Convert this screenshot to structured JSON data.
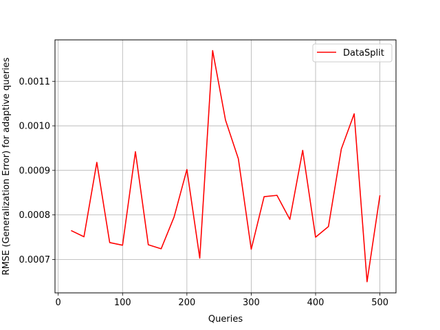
{
  "chart_data": {
    "type": "line",
    "xlabel": "Queries",
    "ylabel": "RMSE (Generalization Error) for adaptive queries",
    "xlim": [
      -5,
      525
    ],
    "ylim": [
      0.000625,
      0.001193
    ],
    "xticks": [
      0,
      100,
      200,
      300,
      400,
      500
    ],
    "xtick_labels": [
      "0",
      "100",
      "200",
      "300",
      "400",
      "500"
    ],
    "yticks": [
      0.0007,
      0.0008,
      0.0009,
      0.001,
      0.0011
    ],
    "ytick_labels": [
      "0.0007",
      "0.0008",
      "0.0009",
      "0.0010",
      "0.0011"
    ],
    "grid": true,
    "legend_position": "top-right",
    "series": [
      {
        "name": "DataSplit",
        "color": "#ff0000",
        "x": [
          20,
          40,
          60,
          80,
          100,
          120,
          140,
          160,
          180,
          200,
          220,
          240,
          260,
          280,
          300,
          320,
          340,
          360,
          380,
          400,
          420,
          440,
          460,
          480,
          500
        ],
        "y": [
          0.000765,
          0.000751,
          0.000918,
          0.000738,
          0.000732,
          0.000942,
          0.000733,
          0.000724,
          0.000795,
          0.000902,
          0.000703,
          0.001169,
          0.001013,
          0.000926,
          0.000723,
          0.000841,
          0.000844,
          0.00079,
          0.000945,
          0.00075,
          0.000774,
          0.000948,
          0.001027,
          0.00065,
          0.000844
        ]
      }
    ]
  }
}
